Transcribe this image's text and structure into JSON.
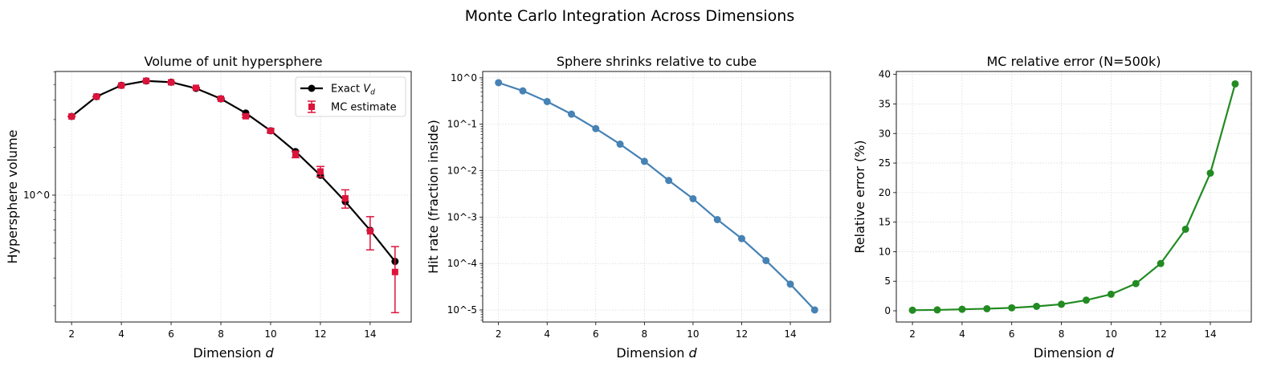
{
  "suptitle": "Monte Carlo Integration Across Dimensions",
  "chart_data": [
    {
      "type": "line",
      "title": "Volume of unit hypersphere",
      "xlabel": "Dimension d",
      "ylabel": "Hypersphere volume",
      "xscale": "linear",
      "yscale": "log",
      "xlim": [
        1.35,
        15.65
      ],
      "ylim": [
        0.158,
        6.04
      ],
      "xticks": [
        2,
        4,
        6,
        8,
        10,
        12,
        14
      ],
      "yticks_major": [
        1
      ],
      "ytick_labels": [
        "10^0"
      ],
      "grid": true,
      "legend_position": "top-right",
      "x": [
        2,
        3,
        4,
        5,
        6,
        7,
        8,
        9,
        10,
        11,
        12,
        13,
        14,
        15
      ],
      "series": [
        {
          "name": "Exact V_d",
          "kind": "line-marker",
          "color": "#000000",
          "values": [
            3.1416,
            4.1888,
            4.9348,
            5.2638,
            5.1677,
            4.7248,
            4.0587,
            3.2985,
            2.5502,
            1.8841,
            1.3353,
            0.9106,
            0.5993,
            0.3814
          ]
        },
        {
          "name": "MC estimate",
          "kind": "errorbar",
          "color": "#dc143c",
          "values": [
            3.14,
            4.19,
            4.93,
            5.27,
            5.16,
            4.76,
            4.06,
            3.15,
            2.55,
            1.81,
            1.41,
            0.954,
            0.591,
            0.327
          ],
          "errors": [
            0.003,
            0.006,
            0.012,
            0.018,
            0.026,
            0.035,
            0.045,
            0.059,
            0.071,
            0.087,
            0.107,
            0.126,
            0.14,
            0.146
          ]
        }
      ]
    },
    {
      "type": "line",
      "title": "Sphere shrinks relative to cube",
      "xlabel": "Dimension d",
      "ylabel": "Hit rate (fraction inside)",
      "xscale": "linear",
      "yscale": "log",
      "xlim": [
        1.35,
        15.65
      ],
      "ylim": [
        5.5e-06,
        1.37
      ],
      "xticks": [
        2,
        4,
        6,
        8,
        10,
        12,
        14
      ],
      "yticks_major": [
        1e-05,
        0.0001,
        0.001,
        0.01,
        0.1,
        1
      ],
      "ytick_labels": [
        "10^-5",
        "10^-4",
        "10^-3",
        "10^-2",
        "10^-1",
        "10^0"
      ],
      "grid": true,
      "x": [
        2,
        3,
        4,
        5,
        6,
        7,
        8,
        9,
        10,
        11,
        12,
        13,
        14,
        15
      ],
      "series": [
        {
          "kind": "line-marker",
          "color": "#4682b4",
          "values": [
            0.785,
            0.524,
            0.308,
            0.165,
            0.0806,
            0.0372,
            0.0159,
            0.00615,
            0.00249,
            0.000884,
            0.000344,
            0.000116,
            3.6e-05,
            1e-05
          ]
        }
      ]
    },
    {
      "type": "line",
      "title": "MC relative error (N=500k)",
      "xlabel": "Dimension d",
      "ylabel": "Relative error (%)",
      "xscale": "linear",
      "yscale": "linear",
      "xlim": [
        1.35,
        15.65
      ],
      "ylim": [
        -1.9,
        40.5
      ],
      "xticks": [
        2,
        4,
        6,
        8,
        10,
        12,
        14
      ],
      "yticks_major": [
        0,
        5,
        10,
        15,
        20,
        25,
        30,
        35,
        40
      ],
      "ytick_labels": [
        "0",
        "5",
        "10",
        "15",
        "20",
        "25",
        "30",
        "35",
        "40"
      ],
      "grid": true,
      "x": [
        2,
        3,
        4,
        5,
        6,
        7,
        8,
        9,
        10,
        11,
        12,
        13,
        14,
        15
      ],
      "series": [
        {
          "kind": "line-marker",
          "color": "#228b22",
          "values": [
            0.1,
            0.15,
            0.25,
            0.35,
            0.5,
            0.75,
            1.1,
            1.8,
            2.8,
            4.6,
            8.0,
            13.8,
            23.3,
            38.4
          ]
        }
      ]
    }
  ]
}
